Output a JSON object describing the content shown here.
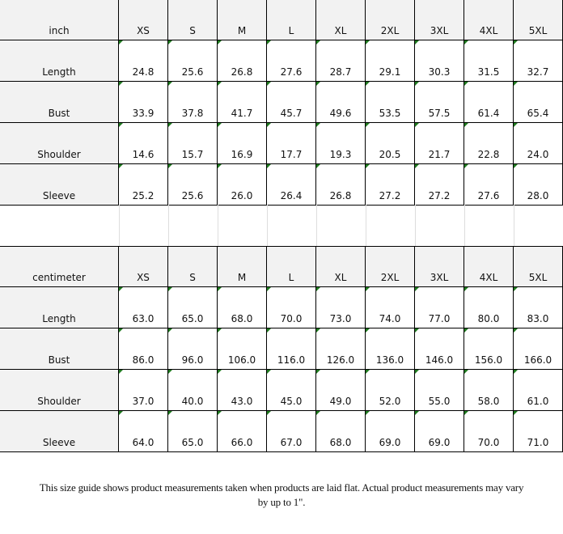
{
  "sizes": [
    "XS",
    "S",
    "M",
    "L",
    "XL",
    "2XL",
    "3XL",
    "4XL",
    "5XL"
  ],
  "tables": [
    {
      "unit": "inch",
      "rows": [
        {
          "label": "Length",
          "values": [
            "24.8",
            "25.6",
            "26.8",
            "27.6",
            "28.7",
            "29.1",
            "30.3",
            "31.5",
            "32.7"
          ]
        },
        {
          "label": "Bust",
          "values": [
            "33.9",
            "37.8",
            "41.7",
            "45.7",
            "49.6",
            "53.5",
            "57.5",
            "61.4",
            "65.4"
          ]
        },
        {
          "label": "Shoulder",
          "values": [
            "14.6",
            "15.7",
            "16.9",
            "17.7",
            "19.3",
            "20.5",
            "21.7",
            "22.8",
            "24.0"
          ]
        },
        {
          "label": "Sleeve",
          "values": [
            "25.2",
            "25.6",
            "26.0",
            "26.4",
            "26.8",
            "27.2",
            "27.2",
            "27.6",
            "28.0"
          ]
        }
      ]
    },
    {
      "unit": "centimeter",
      "rows": [
        {
          "label": "Length",
          "values": [
            "63.0",
            "65.0",
            "68.0",
            "70.0",
            "73.0",
            "74.0",
            "77.0",
            "80.0",
            "83.0"
          ]
        },
        {
          "label": "Bust",
          "values": [
            "86.0",
            "96.0",
            "106.0",
            "116.0",
            "126.0",
            "136.0",
            "146.0",
            "156.0",
            "166.0"
          ]
        },
        {
          "label": "Shoulder",
          "values": [
            "37.0",
            "40.0",
            "43.0",
            "45.0",
            "49.0",
            "52.0",
            "55.0",
            "58.0",
            "61.0"
          ]
        },
        {
          "label": "Sleeve",
          "values": [
            "64.0",
            "65.0",
            "66.0",
            "67.0",
            "68.0",
            "69.0",
            "69.0",
            "70.0",
            "71.0"
          ]
        }
      ]
    }
  ],
  "colors": {
    "header_bg": "#f2f2f2",
    "corner_marker": "#1f7a1f"
  },
  "note": {
    "line1": "This size guide shows product measurements taken when products  are laid flat. Actual product measurements may vary",
    "line2": "by up to 1\"."
  }
}
